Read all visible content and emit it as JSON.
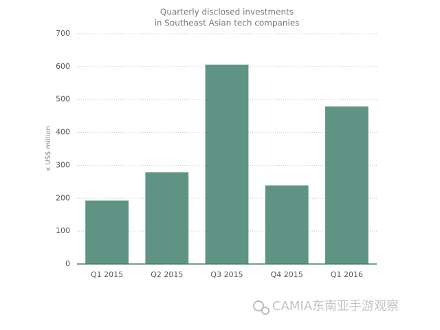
{
  "chart_data": {
    "type": "bar",
    "title": [
      "Quarterly disclosed investments",
      "in Southeast Asian tech companies"
    ],
    "y_label": "x US$ million",
    "categories": [
      "Q1 2015",
      "Q2 2015",
      "Q3 2015",
      "Q4 2015",
      "Q1 2016"
    ],
    "values": [
      193,
      279,
      606,
      239,
      479
    ],
    "color": "#5f9484",
    "ylim": [
      0,
      700
    ],
    "yticks": [
      0,
      100,
      200,
      300,
      400,
      500,
      600,
      700
    ],
    "grid": true
  },
  "watermark": "CAMIA东南亚手游观察"
}
